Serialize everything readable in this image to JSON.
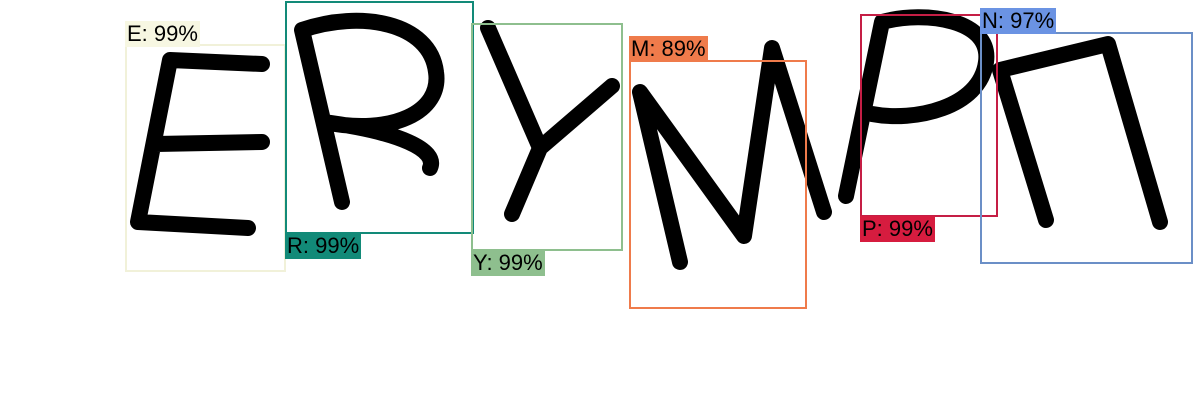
{
  "detections": [
    {
      "id": "e",
      "text": "E: 99%",
      "box_color": "#f1f1d9",
      "label_color": "#f7f7e2"
    },
    {
      "id": "r",
      "text": "R: 99%",
      "box_color": "#128a78",
      "label_color": "#128a78"
    },
    {
      "id": "y",
      "text": "Y: 99%",
      "box_color": "#8ebf8e",
      "label_color": "#8ebf8e"
    },
    {
      "id": "m",
      "text": "M: 89%",
      "box_color": "#ef7b4b",
      "label_color": "#ef7b4b"
    },
    {
      "id": "p",
      "text": "P: 99%",
      "box_color": "#c51e45",
      "label_color": "#d61c3f"
    },
    {
      "id": "n",
      "text": "N: 97%",
      "box_color": "#6b8fc7",
      "label_color": "#6b93e3"
    }
  ]
}
